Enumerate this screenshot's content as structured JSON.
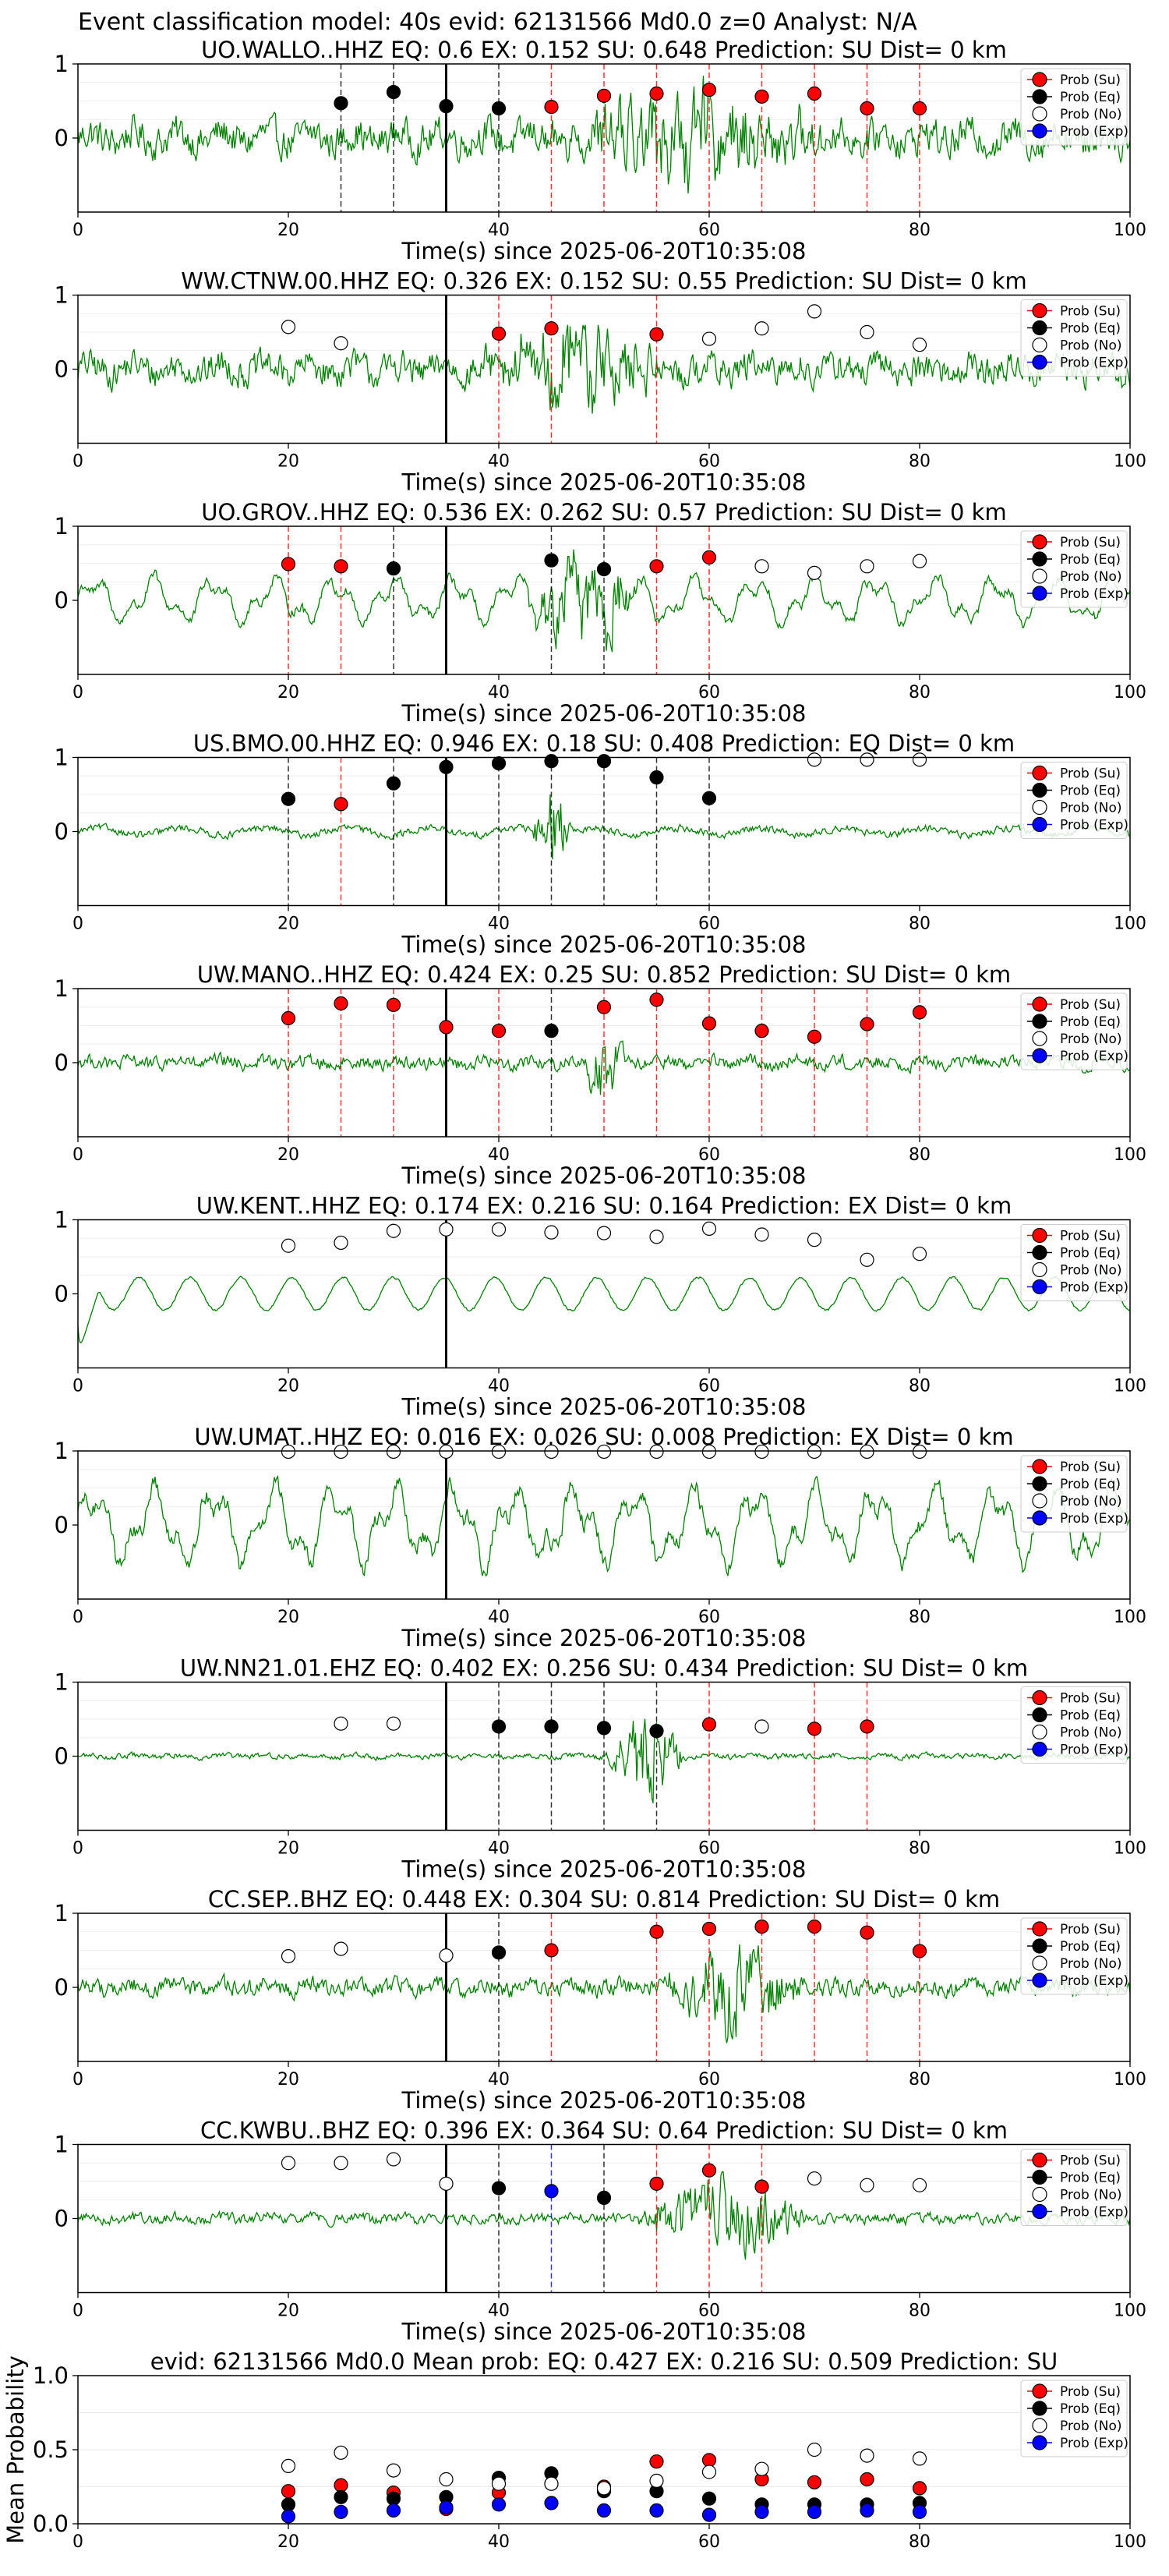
{
  "figure": {
    "suptitle": "Event classification model: 40s evid: 62131566 Md0.0 z=0 Analyst: N/A"
  },
  "legend_labels": [
    "Prob (Su)",
    "Prob (Eq)",
    "Prob (No)",
    "Prob (Exp)"
  ],
  "colors": {
    "su": "#ff0000",
    "eq": "#000000",
    "no": "#ffffff",
    "exp": "#0000ff",
    "waveform": "#008000",
    "event_line": "#000000"
  },
  "chart_data": [
    {
      "type": "line",
      "title": "UO.WALLO..HHZ   EQ: 0.6  EX: 0.152  SU: 0.648   Prediction: SU    Dist= 0 km",
      "xlabel": "Time(s) since 2025-06-20T10:35:08",
      "xlim": [
        0,
        100
      ],
      "ylim": [
        -1,
        1
      ],
      "xticks": [
        0,
        20,
        40,
        60,
        80,
        100
      ],
      "yticks": [
        0,
        1
      ],
      "event_time": 35,
      "amp": 0.5,
      "wave": "burst",
      "burst": [
        44,
        72
      ],
      "points": [
        {
          "x": 25,
          "y": 0.47,
          "c": "eq"
        },
        {
          "x": 30,
          "y": 0.62,
          "c": "eq"
        },
        {
          "x": 35,
          "y": 0.43,
          "c": "eq"
        },
        {
          "x": 40,
          "y": 0.4,
          "c": "eq"
        },
        {
          "x": 45,
          "y": 0.42,
          "c": "su"
        },
        {
          "x": 50,
          "y": 0.57,
          "c": "su"
        },
        {
          "x": 55,
          "y": 0.6,
          "c": "su"
        },
        {
          "x": 60,
          "y": 0.65,
          "c": "su"
        },
        {
          "x": 65,
          "y": 0.56,
          "c": "su"
        },
        {
          "x": 70,
          "y": 0.6,
          "c": "su"
        },
        {
          "x": 75,
          "y": 0.4,
          "c": "su"
        },
        {
          "x": 80,
          "y": 0.4,
          "c": "su"
        }
      ]
    },
    {
      "type": "line",
      "title": "WW.CTNW.00.HHZ   EQ: 0.326  EX: 0.152  SU: 0.55   Prediction: SU    Dist= 0 km",
      "xlabel": "Time(s) since 2025-06-20T10:35:08",
      "xlim": [
        0,
        100
      ],
      "ylim": [
        -1,
        1
      ],
      "xticks": [
        0,
        20,
        40,
        60,
        80,
        100
      ],
      "yticks": [
        0,
        1
      ],
      "event_time": 35,
      "amp": 0.45,
      "wave": "burst",
      "burst": [
        38,
        56
      ],
      "points": [
        {
          "x": 20,
          "y": 0.57,
          "c": "no"
        },
        {
          "x": 25,
          "y": 0.35,
          "c": "no"
        },
        {
          "x": 40,
          "y": 0.48,
          "c": "su"
        },
        {
          "x": 45,
          "y": 0.55,
          "c": "su"
        },
        {
          "x": 55,
          "y": 0.47,
          "c": "su"
        },
        {
          "x": 60,
          "y": 0.41,
          "c": "no"
        },
        {
          "x": 65,
          "y": 0.55,
          "c": "no"
        },
        {
          "x": 70,
          "y": 0.78,
          "c": "no"
        },
        {
          "x": 75,
          "y": 0.5,
          "c": "no"
        },
        {
          "x": 80,
          "y": 0.33,
          "c": "no"
        }
      ]
    },
    {
      "type": "line",
      "title": "UO.GROV..HHZ   EQ: 0.536  EX: 0.262  SU: 0.57   Prediction: SU    Dist= 0 km",
      "xlabel": "Time(s) since 2025-06-20T10:35:08",
      "xlim": [
        0,
        100
      ],
      "ylim": [
        -1,
        1
      ],
      "xticks": [
        0,
        20,
        40,
        60,
        80,
        100
      ],
      "yticks": [
        0,
        1
      ],
      "event_time": 35,
      "amp": 0.35,
      "wave": "wavy",
      "burst": [
        42,
        54
      ],
      "points": [
        {
          "x": 20,
          "y": 0.49,
          "c": "su"
        },
        {
          "x": 25,
          "y": 0.46,
          "c": "su"
        },
        {
          "x": 30,
          "y": 0.43,
          "c": "eq"
        },
        {
          "x": 45,
          "y": 0.54,
          "c": "eq"
        },
        {
          "x": 50,
          "y": 0.42,
          "c": "eq"
        },
        {
          "x": 55,
          "y": 0.46,
          "c": "su"
        },
        {
          "x": 60,
          "y": 0.58,
          "c": "su"
        },
        {
          "x": 65,
          "y": 0.46,
          "c": "no"
        },
        {
          "x": 70,
          "y": 0.37,
          "c": "no"
        },
        {
          "x": 75,
          "y": 0.46,
          "c": "no"
        },
        {
          "x": 80,
          "y": 0.53,
          "c": "no"
        }
      ]
    },
    {
      "type": "line",
      "title": "US.BMO.00.HHZ   EQ: 0.946  EX: 0.18  SU: 0.408   Prediction: EQ    Dist= 0 km",
      "xlabel": "Time(s) since 2025-06-20T10:35:08",
      "xlim": [
        0,
        100
      ],
      "ylim": [
        -1,
        1
      ],
      "xticks": [
        0,
        20,
        40,
        60,
        80,
        100
      ],
      "yticks": [
        0,
        1
      ],
      "event_time": 35,
      "amp": 0.15,
      "wave": "quiet",
      "burst": [
        43,
        47
      ],
      "points": [
        {
          "x": 20,
          "y": 0.44,
          "c": "eq"
        },
        {
          "x": 25,
          "y": 0.37,
          "c": "su"
        },
        {
          "x": 30,
          "y": 0.65,
          "c": "eq"
        },
        {
          "x": 35,
          "y": 0.87,
          "c": "eq"
        },
        {
          "x": 40,
          "y": 0.92,
          "c": "eq"
        },
        {
          "x": 45,
          "y": 0.95,
          "c": "eq"
        },
        {
          "x": 50,
          "y": 0.95,
          "c": "eq"
        },
        {
          "x": 55,
          "y": 0.73,
          "c": "eq"
        },
        {
          "x": 60,
          "y": 0.45,
          "c": "eq"
        },
        {
          "x": 70,
          "y": 0.97,
          "c": "no"
        },
        {
          "x": 75,
          "y": 0.97,
          "c": "no"
        },
        {
          "x": 80,
          "y": 0.97,
          "c": "no"
        }
      ]
    },
    {
      "type": "line",
      "title": "UW.MANO..HHZ   EQ: 0.424  EX: 0.25  SU: 0.852   Prediction: SU    Dist= 0 km",
      "xlabel": "Time(s) since 2025-06-20T10:35:08",
      "xlim": [
        0,
        100
      ],
      "ylim": [
        -1,
        1
      ],
      "xticks": [
        0,
        20,
        40,
        60,
        80,
        100
      ],
      "yticks": [
        0,
        1
      ],
      "event_time": 35,
      "amp": 0.2,
      "wave": "spiky",
      "burst": [
        48,
        52
      ],
      "points": [
        {
          "x": 20,
          "y": 0.6,
          "c": "su"
        },
        {
          "x": 25,
          "y": 0.8,
          "c": "su"
        },
        {
          "x": 30,
          "y": 0.78,
          "c": "su"
        },
        {
          "x": 35,
          "y": 0.48,
          "c": "su"
        },
        {
          "x": 40,
          "y": 0.43,
          "c": "su"
        },
        {
          "x": 45,
          "y": 0.43,
          "c": "eq"
        },
        {
          "x": 50,
          "y": 0.75,
          "c": "su"
        },
        {
          "x": 55,
          "y": 0.85,
          "c": "su"
        },
        {
          "x": 60,
          "y": 0.53,
          "c": "su"
        },
        {
          "x": 65,
          "y": 0.43,
          "c": "su"
        },
        {
          "x": 70,
          "y": 0.35,
          "c": "su"
        },
        {
          "x": 75,
          "y": 0.52,
          "c": "su"
        },
        {
          "x": 80,
          "y": 0.68,
          "c": "su"
        }
      ]
    },
    {
      "type": "line",
      "title": "UW.KENT..HHZ   EQ: 0.174  EX: 0.216  SU: 0.164   Prediction: EX    Dist= 0 km",
      "xlabel": "Time(s) since 2025-06-20T10:35:08",
      "xlim": [
        0,
        100
      ],
      "ylim": [
        -1,
        1
      ],
      "xticks": [
        0,
        20,
        40,
        60,
        80,
        100
      ],
      "yticks": [
        0,
        1
      ],
      "event_time": 35,
      "amp": 0.25,
      "wave": "smooth",
      "burst": [
        0,
        0
      ],
      "points": [
        {
          "x": 20,
          "y": 0.65,
          "c": "no"
        },
        {
          "x": 25,
          "y": 0.69,
          "c": "no"
        },
        {
          "x": 30,
          "y": 0.85,
          "c": "no"
        },
        {
          "x": 35,
          "y": 0.87,
          "c": "no"
        },
        {
          "x": 40,
          "y": 0.87,
          "c": "no"
        },
        {
          "x": 45,
          "y": 0.83,
          "c": "no"
        },
        {
          "x": 50,
          "y": 0.82,
          "c": "no"
        },
        {
          "x": 55,
          "y": 0.77,
          "c": "no"
        },
        {
          "x": 60,
          "y": 0.88,
          "c": "no"
        },
        {
          "x": 65,
          "y": 0.8,
          "c": "no"
        },
        {
          "x": 70,
          "y": 0.73,
          "c": "no"
        },
        {
          "x": 75,
          "y": 0.46,
          "c": "no"
        },
        {
          "x": 80,
          "y": 0.54,
          "c": "no"
        }
      ]
    },
    {
      "type": "line",
      "title": "UW.UMAT..HHZ   EQ: 0.016  EX: 0.026  SU: 0.008   Prediction: EX    Dist= 0 km",
      "xlabel": "Time(s) since 2025-06-20T10:35:08",
      "xlim": [
        0,
        100
      ],
      "ylim": [
        -1,
        1
      ],
      "xticks": [
        0,
        20,
        40,
        60,
        80,
        100
      ],
      "yticks": [
        0,
        1
      ],
      "event_time": 35,
      "amp": 0.6,
      "wave": "wavy",
      "burst": [
        0,
        0
      ],
      "points": [
        {
          "x": 20,
          "y": 0.99,
          "c": "no"
        },
        {
          "x": 25,
          "y": 0.99,
          "c": "no"
        },
        {
          "x": 30,
          "y": 0.99,
          "c": "no"
        },
        {
          "x": 35,
          "y": 0.99,
          "c": "no"
        },
        {
          "x": 40,
          "y": 0.99,
          "c": "no"
        },
        {
          "x": 45,
          "y": 0.99,
          "c": "no"
        },
        {
          "x": 50,
          "y": 0.99,
          "c": "no"
        },
        {
          "x": 55,
          "y": 0.99,
          "c": "no"
        },
        {
          "x": 60,
          "y": 0.99,
          "c": "no"
        },
        {
          "x": 65,
          "y": 0.99,
          "c": "no"
        },
        {
          "x": 70,
          "y": 0.99,
          "c": "no"
        },
        {
          "x": 75,
          "y": 0.99,
          "c": "no"
        },
        {
          "x": 80,
          "y": 0.99,
          "c": "no"
        }
      ]
    },
    {
      "type": "line",
      "title": "UW.NN21.01.EHZ   EQ: 0.402  EX: 0.256  SU: 0.434   Prediction: SU    Dist= 0 km",
      "xlabel": "Time(s) since 2025-06-20T10:35:08",
      "xlim": [
        0,
        100
      ],
      "ylim": [
        -1,
        1
      ],
      "xticks": [
        0,
        20,
        40,
        60,
        80,
        100
      ],
      "yticks": [
        0,
        1
      ],
      "event_time": 35,
      "amp": 0.08,
      "wave": "spiky",
      "burst": [
        50,
        58
      ],
      "points": [
        {
          "x": 25,
          "y": 0.44,
          "c": "no"
        },
        {
          "x": 30,
          "y": 0.44,
          "c": "no"
        },
        {
          "x": 40,
          "y": 0.4,
          "c": "eq"
        },
        {
          "x": 45,
          "y": 0.4,
          "c": "eq"
        },
        {
          "x": 50,
          "y": 0.38,
          "c": "eq"
        },
        {
          "x": 55,
          "y": 0.34,
          "c": "eq"
        },
        {
          "x": 60,
          "y": 0.43,
          "c": "su"
        },
        {
          "x": 65,
          "y": 0.4,
          "c": "no"
        },
        {
          "x": 70,
          "y": 0.37,
          "c": "su"
        },
        {
          "x": 75,
          "y": 0.4,
          "c": "su"
        }
      ]
    },
    {
      "type": "line",
      "title": "CC.SEP..BHZ   EQ: 0.448  EX: 0.304  SU: 0.814   Prediction: SU    Dist= 0 km",
      "xlabel": "Time(s) since 2025-06-20T10:35:08",
      "xlim": [
        0,
        100
      ],
      "ylim": [
        -1,
        1
      ],
      "xticks": [
        0,
        20,
        40,
        60,
        80,
        100
      ],
      "yticks": [
        0,
        1
      ],
      "event_time": 35,
      "amp": 0.25,
      "wave": "burst",
      "burst": [
        55,
        70
      ],
      "points": [
        {
          "x": 20,
          "y": 0.42,
          "c": "no"
        },
        {
          "x": 25,
          "y": 0.52,
          "c": "no"
        },
        {
          "x": 35,
          "y": 0.43,
          "c": "no"
        },
        {
          "x": 40,
          "y": 0.47,
          "c": "eq"
        },
        {
          "x": 45,
          "y": 0.5,
          "c": "su"
        },
        {
          "x": 55,
          "y": 0.75,
          "c": "su"
        },
        {
          "x": 60,
          "y": 0.79,
          "c": "su"
        },
        {
          "x": 65,
          "y": 0.82,
          "c": "su"
        },
        {
          "x": 70,
          "y": 0.82,
          "c": "su"
        },
        {
          "x": 75,
          "y": 0.74,
          "c": "su"
        },
        {
          "x": 80,
          "y": 0.49,
          "c": "su"
        }
      ]
    },
    {
      "type": "line",
      "title": "CC.KWBU..BHZ   EQ: 0.396  EX: 0.364  SU: 0.64   Prediction: SU    Dist= 0 km",
      "xlabel": "Time(s) since 2025-06-20T10:35:08",
      "xlim": [
        0,
        100
      ],
      "ylim": [
        -1,
        1
      ],
      "xticks": [
        0,
        20,
        40,
        60,
        80,
        100
      ],
      "yticks": [
        0,
        1
      ],
      "event_time": 35,
      "amp": 0.15,
      "wave": "burst",
      "burst": [
        53,
        70
      ],
      "points": [
        {
          "x": 20,
          "y": 0.75,
          "c": "no"
        },
        {
          "x": 25,
          "y": 0.75,
          "c": "no"
        },
        {
          "x": 30,
          "y": 0.8,
          "c": "no"
        },
        {
          "x": 35,
          "y": 0.47,
          "c": "no"
        },
        {
          "x": 40,
          "y": 0.41,
          "c": "eq"
        },
        {
          "x": 45,
          "y": 0.37,
          "c": "exp"
        },
        {
          "x": 50,
          "y": 0.28,
          "c": "eq"
        },
        {
          "x": 55,
          "y": 0.47,
          "c": "su"
        },
        {
          "x": 60,
          "y": 0.65,
          "c": "su"
        },
        {
          "x": 65,
          "y": 0.43,
          "c": "su"
        },
        {
          "x": 70,
          "y": 0.54,
          "c": "no"
        },
        {
          "x": 75,
          "y": 0.45,
          "c": "no"
        },
        {
          "x": 80,
          "y": 0.45,
          "c": "no"
        }
      ]
    },
    {
      "type": "scatter",
      "title": "evid: 62131566  Md0.0   Mean prob:   EQ: 0.427  EX: 0.216  SU: 0.509   Prediction: SU",
      "ylabel": "Mean Probability",
      "xlim": [
        0,
        100
      ],
      "ylim": [
        0,
        1
      ],
      "xticks": [
        0,
        20,
        40,
        60,
        80,
        100
      ],
      "yticks": [
        0,
        0.5,
        1
      ],
      "ytick_labels": [
        "0.0",
        "0.5",
        "1.0"
      ],
      "series": [
        {
          "name": "Prob (Su)",
          "c": "su",
          "x": [
            20,
            25,
            30,
            35,
            40,
            45,
            50,
            55,
            60,
            65,
            70,
            75,
            80
          ],
          "y": [
            0.22,
            0.26,
            0.21,
            0.1,
            0.21,
            0.27,
            0.25,
            0.42,
            0.43,
            0.3,
            0.28,
            0.3,
            0.24
          ]
        },
        {
          "name": "Prob (Eq)",
          "c": "eq",
          "x": [
            20,
            25,
            30,
            35,
            40,
            45,
            50,
            55,
            60,
            65,
            70,
            75,
            80
          ],
          "y": [
            0.13,
            0.18,
            0.17,
            0.18,
            0.31,
            0.34,
            0.22,
            0.22,
            0.17,
            0.13,
            0.13,
            0.13,
            0.14
          ]
        },
        {
          "name": "Prob (No)",
          "c": "no",
          "x": [
            20,
            25,
            30,
            35,
            40,
            45,
            50,
            55,
            60,
            65,
            70,
            75,
            80
          ],
          "y": [
            0.39,
            0.48,
            0.36,
            0.3,
            0.27,
            0.27,
            0.24,
            0.29,
            0.35,
            0.37,
            0.5,
            0.46,
            0.44
          ]
        },
        {
          "name": "Prob (Exp)",
          "c": "exp",
          "x": [
            20,
            25,
            30,
            35,
            40,
            45,
            50,
            55,
            60,
            65,
            70,
            75,
            80
          ],
          "y": [
            0.05,
            0.08,
            0.09,
            0.11,
            0.13,
            0.14,
            0.09,
            0.09,
            0.06,
            0.08,
            0.08,
            0.09,
            0.08
          ]
        }
      ]
    }
  ]
}
